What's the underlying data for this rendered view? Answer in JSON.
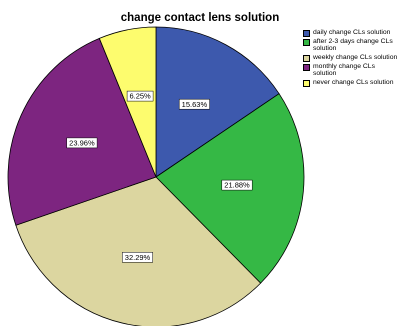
{
  "chart_data": {
    "type": "pie",
    "title": "change contact lens solution",
    "categories": [
      "daily change CLs solution",
      "after 2-3 days change CLs solution",
      "weekly change CLs solution",
      "monthly change CLs solution",
      "never change CLs solution"
    ],
    "values": [
      15.63,
      21.88,
      32.29,
      23.96,
      6.25
    ],
    "data_labels": [
      "15.63%",
      "21.88%",
      "32.29%",
      "23.96%",
      "6.25%"
    ],
    "colors": [
      "#3d59ad",
      "#35b845",
      "#dcd6a0",
      "#7d2580",
      "#fdfc6e"
    ],
    "start_angle_deg": 0,
    "direction": "clockwise",
    "legend_position": "top-right"
  }
}
